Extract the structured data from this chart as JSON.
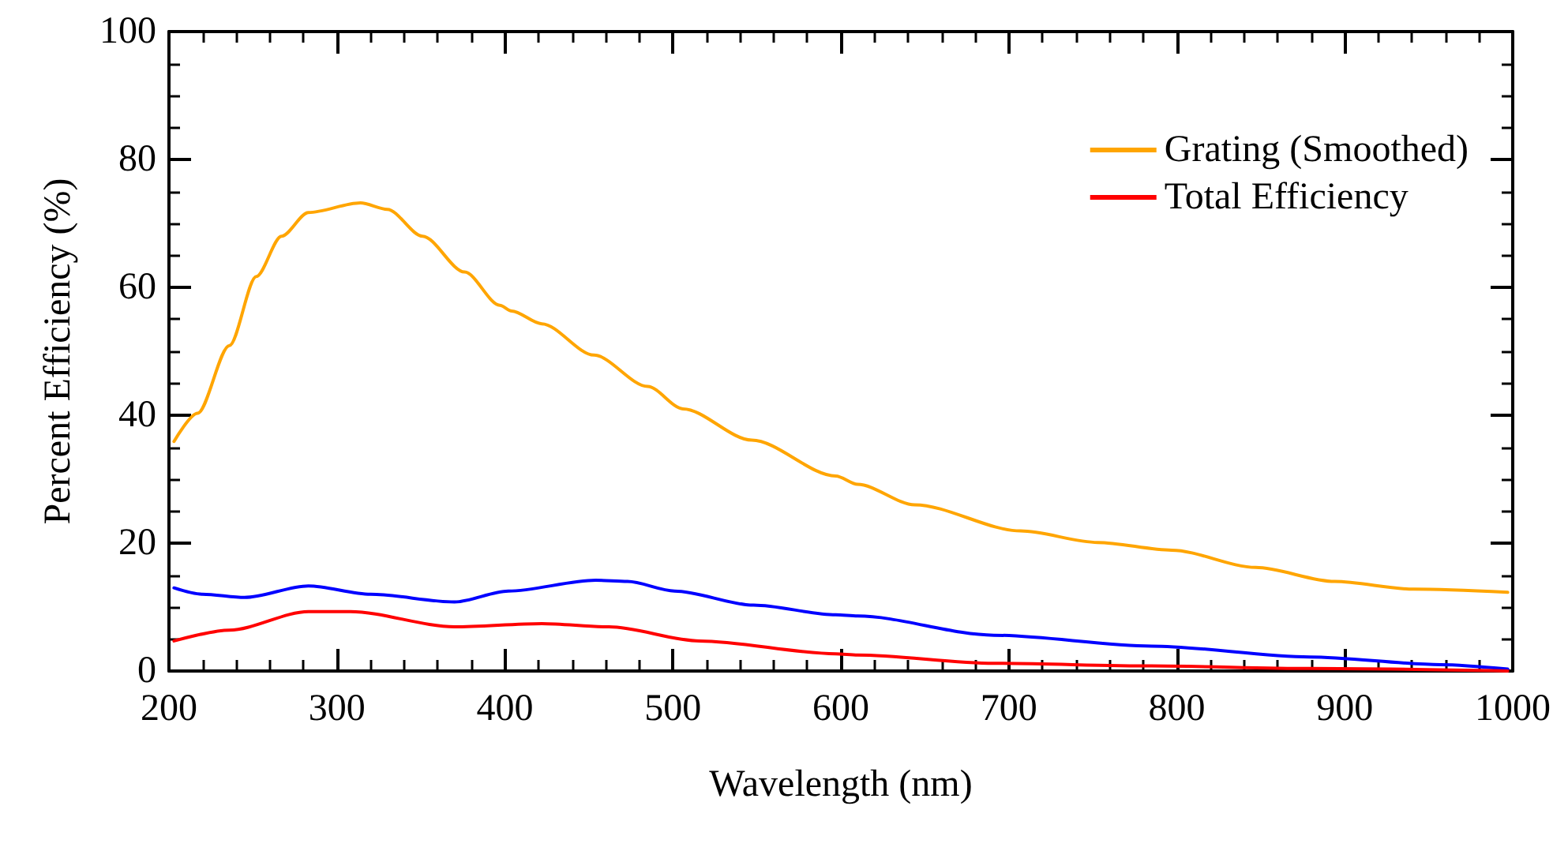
{
  "chart_data": {
    "type": "line",
    "xlabel": "Wavelength (nm)",
    "ylabel": "Percent Efficiency (%)",
    "xlim": [
      200,
      1000
    ],
    "xticks": [
      200,
      300,
      400,
      500,
      600,
      700,
      800,
      900,
      1000
    ],
    "ylim": [
      0,
      100
    ],
    "yticks": [
      0,
      20,
      40,
      60,
      80,
      100
    ],
    "grid": false,
    "legend": "top right",
    "marker": "none",
    "line_style": "solid",
    "series": [
      {
        "color": "#0000ff",
        "x": [
          203,
          220,
          245,
          283,
          320,
          370,
          402,
          454,
          473,
          501,
          548,
          597,
          610,
          691,
          785,
          879,
          957,
          997
        ],
        "values": [
          13.0,
          12.0,
          11.5,
          13.3,
          12.0,
          10.8,
          12.5,
          14.2,
          14.0,
          12.5,
          10.3,
          8.8,
          8.6,
          5.6,
          3.9,
          2.2,
          1.0,
          0.3
        ]
      },
      {
        "name": "Grating (Smoothed)",
        "color": "#ffa500",
        "x": [
          203,
          217,
          236,
          252,
          267,
          283,
          314,
          330,
          351,
          376,
          397,
          404,
          422,
          453,
          485,
          506,
          547,
          597,
          610,
          644,
          707,
          753,
          797,
          847,
          894,
          941,
          997
        ],
        "values": [
          35.9,
          40.3,
          50.9,
          61.7,
          68.0,
          71.7,
          73.2,
          72.2,
          68.0,
          62.4,
          57.2,
          56.3,
          54.3,
          49.4,
          44.5,
          41.0,
          36.1,
          30.5,
          29.2,
          26.0,
          21.9,
          20.1,
          18.9,
          16.2,
          14.0,
          12.8,
          12.3
        ]
      },
      {
        "name": "Total Efficiency",
        "color": "#ff0000",
        "x": [
          203,
          236,
          283,
          308,
          370,
          422,
          462,
          516,
          597,
          610,
          691,
          785,
          879,
          997
        ],
        "values": [
          4.7,
          6.4,
          9.3,
          9.3,
          6.9,
          7.4,
          6.9,
          4.7,
          2.7,
          2.5,
          1.2,
          0.8,
          0.4,
          0.0
        ]
      }
    ]
  }
}
